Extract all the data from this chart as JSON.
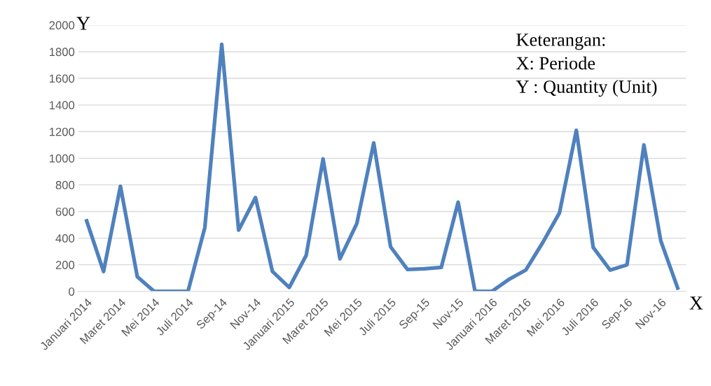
{
  "chart_data": {
    "type": "line",
    "xlabel": "X",
    "ylabel": "Y",
    "categories": [
      "Januari 2014",
      null,
      "Maret 2014",
      null,
      "Mei 2014",
      null,
      "Juli 2014",
      null,
      "Sep-14",
      null,
      "Nov-14",
      null,
      "Januari 2015",
      null,
      "Maret 2015",
      null,
      "Mei 2015",
      null,
      "Juli 2015",
      null,
      "Sep-15",
      null,
      "Nov-15",
      null,
      "Januari 2016",
      null,
      "Maret 2016",
      null,
      "Mei 2016",
      null,
      "Juli 2016",
      null,
      "Sep-16",
      null,
      "Nov-16",
      null
    ],
    "series": [
      {
        "color": "#4f81bd",
        "values": [
          530,
          150,
          790,
          110,
          0,
          0,
          0,
          480,
          1855,
          460,
          705,
          150,
          30,
          270,
          995,
          245,
          510,
          1115,
          335,
          165,
          170,
          180,
          670,
          0,
          0,
          90,
          160,
          365,
          590,
          1210,
          330,
          160,
          200,
          1100,
          380,
          25
        ]
      }
    ],
    "ylim": [
      0,
      2000
    ],
    "yticks": [
      0,
      200,
      400,
      600,
      800,
      1000,
      1200,
      1400,
      1600,
      1800,
      2000
    ],
    "grid": "y",
    "legend": false,
    "marker": "none",
    "line_style": "solid",
    "annotations": [
      "Keterangan:",
      "X: Periode",
      "Y : Quantity (Unit)"
    ]
  }
}
